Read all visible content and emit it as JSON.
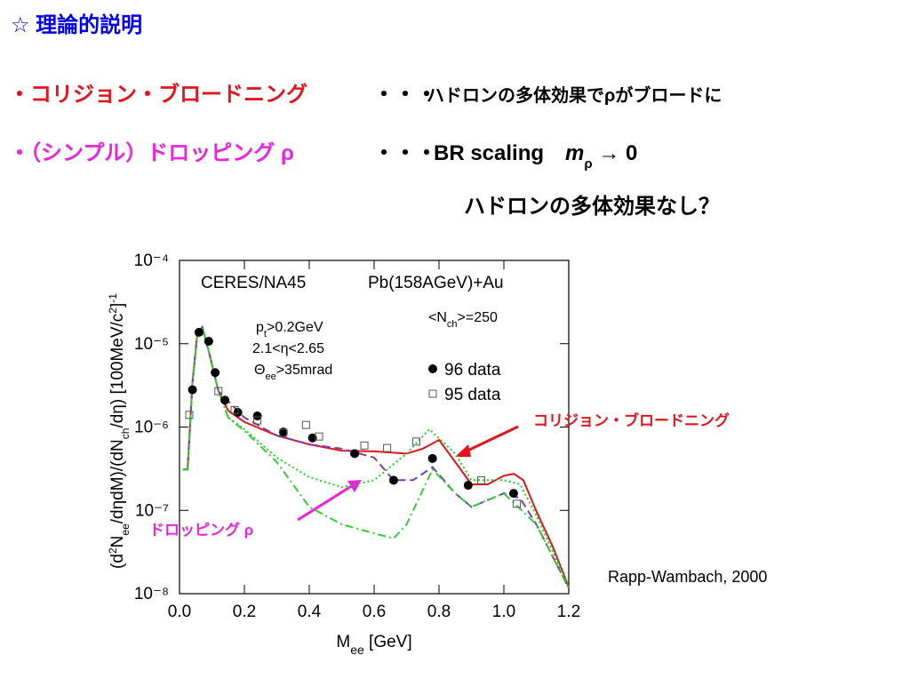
{
  "title": "☆ 理論的説明",
  "bullets": [
    {
      "term": "・コリジョン・ブロードニング",
      "dots": "・・・",
      "desc": "ハドロンの多体効果でρがブロードに"
    },
    {
      "term": "・（シンプル）ドロッピング ρ",
      "dots": "・・・",
      "desc": [
        "BR scaling",
        "m",
        "ρ",
        " → 0"
      ],
      "note": "ハドロンの多体効果なし？"
    }
  ],
  "chart_data": {
    "type": "line",
    "xlabel": [
      "M",
      "ee",
      " [GeV]"
    ],
    "ylabel": [
      "(d",
      "2",
      "N",
      "ee",
      "/dηdM)/(dN",
      "ch",
      "/dη) [100MeV/c",
      "2",
      "]",
      "-1"
    ],
    "xlim": [
      0,
      1.2
    ],
    "xticks": [
      {
        "value": 0,
        "label": "0.0"
      },
      0.2,
      0.4,
      0.6,
      0.8,
      {
        "value": 1,
        "label": "1.0"
      },
      1.2
    ],
    "ylim": [
      1e-08,
      0.0001
    ],
    "yticks": [
      {
        "value": 1e-08,
        "label": "10⁻⁸"
      },
      {
        "value": 1e-07,
        "label": "10⁻⁷"
      },
      {
        "value": 1e-06,
        "label": "10⁻⁶"
      },
      {
        "value": 1e-05,
        "label": "10⁻⁵"
      },
      {
        "value": 0.0001,
        "label": "10⁻⁴"
      }
    ],
    "log_y": true,
    "annotations": {
      "experiment": "CERES/NA45",
      "system": "Pb(158AGeV)+Au",
      "multiplicity": [
        "<N",
        "ch",
        ">=250"
      ],
      "cuts": [
        [
          "p",
          "t",
          ">0.2GeV"
        ],
        "2.1<η<2.65",
        [
          "Θ",
          "ee",
          ">35mrad"
        ]
      ],
      "collision_label": "コリジョン・ブロードニング",
      "dropping_label": "ドロッピング ρ",
      "reference": "Rapp-Wambach, 2000"
    },
    "series": [
      {
        "type": "line",
        "style": "solid",
        "color": "#e3141b",
        "x": [
          0.01,
          0.025,
          0.04,
          0.055,
          0.07,
          0.09,
          0.12,
          0.15,
          0.2,
          0.3,
          0.4,
          0.5,
          0.6,
          0.7,
          0.75,
          0.8,
          0.85,
          0.9,
          0.95,
          1.0,
          1.03,
          1.06,
          1.1,
          1.15,
          1.2
        ],
        "values": [
          3.1e-07,
          3.1e-07,
          3.46e-06,
          1.33e-05,
          1.58e-05,
          8.2e-06,
          2.7e-06,
          1.57e-06,
          1.15e-06,
          7.9e-07,
          6.2e-07,
          5.2e-07,
          5.1e-07,
          4.8e-07,
          5.5e-07,
          7e-07,
          3.8e-07,
          2.05e-07,
          2.05e-07,
          2.6e-07,
          2.75e-07,
          2.3e-07,
          9.8e-08,
          3.7e-08,
          1.2e-08
        ]
      },
      {
        "type": "line",
        "style": "dotted",
        "color": "#22cc22",
        "x": [
          0.01,
          0.025,
          0.04,
          0.055,
          0.07,
          0.09,
          0.12,
          0.15,
          0.2,
          0.3,
          0.4,
          0.5,
          0.6,
          0.7,
          0.77,
          0.85,
          0.9,
          1.0,
          1.05,
          1.1,
          1.2
        ],
        "values": [
          3.1e-07,
          3.1e-07,
          3.46e-06,
          1.33e-05,
          1.58e-05,
          8.2e-06,
          2.7e-06,
          1.3e-06,
          9.4e-07,
          4.3e-07,
          2.5e-07,
          1.9e-07,
          2.3e-07,
          4.8e-07,
          9.4e-07,
          4.8e-07,
          2.3e-07,
          2.3e-07,
          2.05e-07,
          8.7e-08,
          1.2e-08
        ]
      },
      {
        "type": "line",
        "style": "dashed",
        "color": "#7a3db8",
        "x": [
          0.01,
          0.025,
          0.04,
          0.055,
          0.07,
          0.09,
          0.12,
          0.2,
          0.3,
          0.4,
          0.5,
          0.6,
          0.66,
          0.72,
          0.78,
          0.85,
          0.9,
          1.0,
          1.05,
          1.1,
          1.2
        ],
        "values": [
          3.1e-07,
          3.1e-07,
          3.46e-06,
          1.33e-05,
          1.58e-05,
          8.2e-06,
          2.7e-06,
          1.3e-06,
          7.9e-07,
          6.2e-07,
          5.5e-07,
          4.3e-07,
          2.3e-07,
          2.3e-07,
          3.3e-07,
          1.6e-07,
          1.1e-07,
          1.6e-07,
          1.4e-07,
          6.8e-08,
          1.16e-08
        ]
      },
      {
        "type": "line",
        "style": "dashdot",
        "color": "#33cc33",
        "x": [
          0.01,
          0.025,
          0.04,
          0.055,
          0.07,
          0.09,
          0.12,
          0.15,
          0.2,
          0.3,
          0.4,
          0.5,
          0.6,
          0.66,
          0.7,
          0.78,
          0.85,
          0.9,
          1.0,
          1.1,
          1.2
        ],
        "values": [
          3.1e-07,
          3.1e-07,
          3.46e-06,
          1.33e-05,
          1.58e-05,
          8.2e-06,
          2.7e-06,
          1.3e-06,
          9e-07,
          3.8e-07,
          1.1e-07,
          6.8e-08,
          5.3e-08,
          4.6e-08,
          6.8e-08,
          3.1e-07,
          1.6e-07,
          1.1e-07,
          1.6e-07,
          6.8e-08,
          1.16e-08
        ]
      },
      {
        "type": "scatter",
        "marker": "circle",
        "name": "96 data",
        "color": "#000000",
        "x": [
          0.04,
          0.06,
          0.09,
          0.11,
          0.14,
          0.18,
          0.24,
          0.32,
          0.41,
          0.54,
          0.66,
          0.78,
          0.89,
          1.03
        ],
        "values": [
          2.8e-06,
          1.37e-05,
          1.07e-05,
          4.5e-06,
          2.1e-06,
          1.5e-06,
          1.36e-06,
          8.7e-07,
          7.4e-07,
          4.8e-07,
          2.3e-07,
          4.2e-07,
          2e-07,
          1.6e-07
        ]
      },
      {
        "type": "scatter",
        "marker": "square",
        "name": "95 data",
        "color": "#555555",
        "x": [
          0.03,
          0.12,
          0.17,
          0.24,
          0.32,
          0.39,
          0.43,
          0.57,
          0.64,
          0.73,
          0.93,
          1.04
        ],
        "values": [
          1.4e-06,
          2.7e-06,
          1.6e-06,
          1.2e-06,
          8.5e-07,
          1.06e-06,
          7.7e-07,
          6e-07,
          5.6e-07,
          6.7e-07,
          2.3e-07,
          1.2e-07
        ]
      }
    ]
  }
}
